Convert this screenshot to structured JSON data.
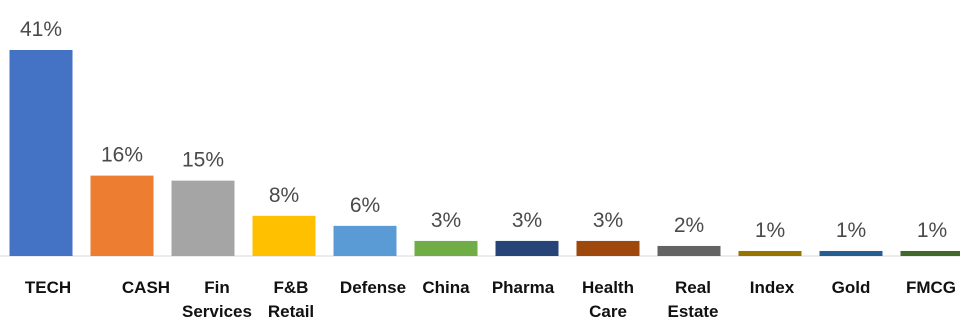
{
  "chart_data": {
    "type": "bar",
    "title": "",
    "xlabel": "",
    "ylabel": "",
    "ylim": [
      0,
      41
    ],
    "grid": false,
    "legend": "none",
    "value_suffix": "%",
    "categories": [
      "TECH",
      "CASH",
      "Fin Services",
      "F&B Retail",
      "Defense",
      "China",
      "Pharma",
      "Health Care",
      "Real Estate",
      "Index",
      "Gold",
      "FMCG"
    ],
    "category_lines": [
      [
        "TECH"
      ],
      [
        "CASH"
      ],
      [
        "Fin",
        "Services"
      ],
      [
        "F&B",
        "Retail"
      ],
      [
        "Defense"
      ],
      [
        "China"
      ],
      [
        "Pharma"
      ],
      [
        "Health",
        "Care"
      ],
      [
        "Real",
        "Estate"
      ],
      [
        "Index"
      ],
      [
        "Gold"
      ],
      [
        "FMCG"
      ]
    ],
    "values": [
      41,
      16,
      15,
      8,
      6,
      3,
      3,
      3,
      2,
      1,
      1,
      1
    ],
    "value_labels": [
      "41%",
      "16%",
      "15%",
      "8%",
      "6%",
      "3%",
      "3%",
      "3%",
      "2%",
      "1%",
      "1%",
      "1%"
    ],
    "colors": [
      "#4472c4",
      "#ed7d31",
      "#a5a5a5",
      "#ffc000",
      "#5b9bd5",
      "#70ad47",
      "#264478",
      "#9e480e",
      "#636363",
      "#997300",
      "#255e91",
      "#43682b"
    ]
  }
}
